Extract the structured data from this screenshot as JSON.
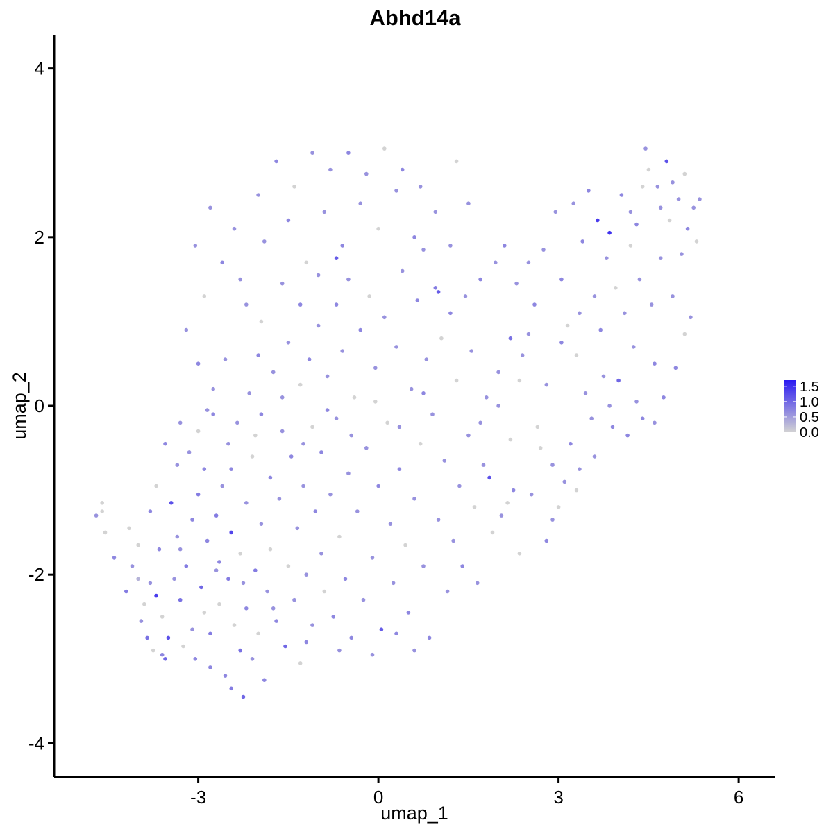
{
  "chart_data": {
    "type": "scatter",
    "title": "Abhd14a",
    "xlabel": "umap_1",
    "ylabel": "umap_2",
    "xlim": [
      -5.4,
      6.6
    ],
    "ylim": [
      -4.4,
      4.4
    ],
    "x_ticks": [
      -3,
      0,
      3,
      6
    ],
    "x_tick_labels": [
      "-3",
      "0",
      "3",
      "6"
    ],
    "y_ticks": [
      -4,
      -2,
      0,
      2,
      4
    ],
    "y_tick_labels": [
      "-4",
      "-2",
      "0",
      "2",
      "4"
    ],
    "grid": false,
    "legend_placement": "right",
    "color_scale": {
      "low_color": "#d3d3d3",
      "high_color": "#2b1bf2",
      "min": 0.0,
      "max": 1.7,
      "tick_values": [
        0.0,
        0.5,
        1.0,
        1.5
      ],
      "tick_labels": [
        "0.0",
        "0.5",
        "1.0",
        "1.5"
      ]
    },
    "points_note_key": "x,y,expression",
    "points": [
      [
        -4.7,
        -1.3,
        0.6
      ],
      [
        -4.6,
        -1.15,
        0.0
      ],
      [
        -4.6,
        -1.25,
        0.0
      ],
      [
        -4.55,
        -1.5,
        0.0
      ],
      [
        -4.4,
        -1.8,
        0.7
      ],
      [
        -4.2,
        -2.2,
        0.8
      ],
      [
        -4.15,
        -1.45,
        0.0
      ],
      [
        -4.1,
        -1.9,
        0.6
      ],
      [
        -4.0,
        -2.05,
        0.3
      ],
      [
        -4.0,
        -1.65,
        0.0
      ],
      [
        -3.95,
        -2.55,
        0.6
      ],
      [
        -3.9,
        -2.35,
        0.0
      ],
      [
        -3.85,
        -2.75,
        0.9
      ],
      [
        -3.8,
        -1.25,
        0.7
      ],
      [
        -3.75,
        -2.9,
        0.0
      ],
      [
        -3.7,
        -2.25,
        1.4
      ],
      [
        -3.65,
        -1.7,
        0.7
      ],
      [
        -3.6,
        -2.5,
        0.0
      ],
      [
        -3.6,
        -2.95,
        0.7
      ],
      [
        -3.55,
        -3.0,
        1.0
      ],
      [
        -3.5,
        -2.75,
        1.2
      ],
      [
        -3.45,
        -1.15,
        1.2
      ],
      [
        -3.4,
        -2.05,
        0.6
      ],
      [
        -3.35,
        -1.55,
        0.6
      ],
      [
        -3.3,
        -2.3,
        0.9
      ],
      [
        -3.3,
        -0.2,
        0.6
      ],
      [
        -3.25,
        -2.85,
        0.0
      ],
      [
        -3.2,
        -1.9,
        0.8
      ],
      [
        -3.15,
        -0.55,
        0.6
      ],
      [
        -3.1,
        -1.35,
        0.7
      ],
      [
        -3.1,
        -2.65,
        0.6
      ],
      [
        -3.05,
        -3.0,
        0.7
      ],
      [
        -3.0,
        -1.05,
        0.8
      ],
      [
        -3.0,
        -0.3,
        0.0
      ],
      [
        -2.95,
        -2.15,
        1.0
      ],
      [
        -2.9,
        -0.75,
        0.7
      ],
      [
        -2.9,
        -2.45,
        0.0
      ],
      [
        -2.85,
        -1.6,
        0.7
      ],
      [
        -2.8,
        -3.1,
        0.7
      ],
      [
        -2.8,
        -2.7,
        0.8
      ],
      [
        -2.75,
        -0.1,
        0.7
      ],
      [
        -2.7,
        -1.95,
        0.6
      ],
      [
        -2.7,
        -1.3,
        0.8
      ],
      [
        -2.65,
        -2.35,
        0.0
      ],
      [
        -2.6,
        -0.95,
        0.6
      ],
      [
        -2.55,
        -3.2,
        0.7
      ],
      [
        -2.5,
        -2.05,
        0.8
      ],
      [
        -2.5,
        -0.45,
        0.6
      ],
      [
        -2.45,
        -1.5,
        1.3
      ],
      [
        -2.45,
        -3.35,
        0.8
      ],
      [
        -2.4,
        -2.6,
        0.0
      ],
      [
        -2.35,
        -0.2,
        0.6
      ],
      [
        -2.3,
        -1.75,
        0.0
      ],
      [
        -2.3,
        -2.9,
        0.9
      ],
      [
        -2.25,
        -3.45,
        1.0
      ],
      [
        -2.2,
        -1.15,
        0.6
      ],
      [
        -2.2,
        -2.4,
        0.7
      ],
      [
        -2.15,
        0.15,
        0.6
      ],
      [
        -2.1,
        -0.6,
        0.0
      ],
      [
        -2.1,
        -3.0,
        0.6
      ],
      [
        -2.05,
        -1.95,
        0.8
      ],
      [
        -2.0,
        -2.7,
        0.0
      ],
      [
        -1.95,
        -1.4,
        0.6
      ],
      [
        -1.95,
        -0.1,
        0.7
      ],
      [
        -1.9,
        -3.25,
        0.7
      ],
      [
        -1.85,
        -2.2,
        0.6
      ],
      [
        -1.8,
        -0.85,
        0.7
      ],
      [
        -1.8,
        -1.7,
        0.0
      ],
      [
        -1.75,
        0.4,
        0.6
      ],
      [
        -1.7,
        -2.55,
        0.7
      ],
      [
        -1.65,
        -1.1,
        0.6
      ],
      [
        -1.6,
        -0.3,
        0.6
      ],
      [
        -1.55,
        -2.85,
        1.0
      ],
      [
        -1.5,
        -1.9,
        0.0
      ],
      [
        -1.5,
        0.75,
        0.6
      ],
      [
        -1.45,
        -0.6,
        0.7
      ],
      [
        -1.4,
        -2.3,
        0.6
      ],
      [
        -1.35,
        -1.45,
        0.6
      ],
      [
        -1.3,
        0.25,
        0.0
      ],
      [
        -1.3,
        -3.05,
        0.0
      ],
      [
        -1.25,
        -0.95,
        0.6
      ],
      [
        -1.2,
        -2.0,
        0.6
      ],
      [
        -1.15,
        0.55,
        0.7
      ],
      [
        -1.1,
        -0.25,
        0.0
      ],
      [
        -1.1,
        -2.6,
        0.6
      ],
      [
        -1.05,
        -1.25,
        0.7
      ],
      [
        -1.0,
        0.95,
        0.6
      ],
      [
        -0.95,
        -1.75,
        0.6
      ],
      [
        -0.95,
        -0.55,
        0.7
      ],
      [
        -0.9,
        -2.2,
        0.0
      ],
      [
        -0.85,
        0.35,
        0.6
      ],
      [
        -0.8,
        -1.05,
        0.6
      ],
      [
        -0.75,
        -2.5,
        0.7
      ],
      [
        -0.7,
        1.2,
        0.7
      ],
      [
        -0.7,
        -0.15,
        0.6
      ],
      [
        -0.65,
        -1.55,
        0.0
      ],
      [
        -0.6,
        0.65,
        0.6
      ],
      [
        -0.55,
        -2.05,
        0.7
      ],
      [
        -0.5,
        -0.8,
        0.6
      ],
      [
        -0.5,
        1.5,
        0.6
      ],
      [
        -0.45,
        -2.75,
        0.7
      ],
      [
        -0.4,
        0.1,
        0.0
      ],
      [
        -0.35,
        -1.25,
        0.6
      ],
      [
        -0.3,
        0.9,
        0.7
      ],
      [
        -0.25,
        -2.3,
        0.6
      ],
      [
        -0.2,
        -0.5,
        0.6
      ],
      [
        -0.15,
        1.3,
        0.0
      ],
      [
        -0.1,
        -1.8,
        0.6
      ],
      [
        -0.05,
        0.45,
        0.6
      ],
      [
        0.0,
        -0.95,
        0.7
      ],
      [
        0.05,
        -2.65,
        1.1
      ],
      [
        0.1,
        1.05,
        0.6
      ],
      [
        0.15,
        -0.2,
        0.0
      ],
      [
        0.2,
        -1.4,
        0.6
      ],
      [
        0.25,
        -2.1,
        0.6
      ],
      [
        0.3,
        0.7,
        0.6
      ],
      [
        0.35,
        -0.75,
        0.7
      ],
      [
        0.4,
        1.6,
        0.6
      ],
      [
        0.45,
        -1.65,
        0.0
      ],
      [
        0.5,
        -2.45,
        0.7
      ],
      [
        0.55,
        0.2,
        0.6
      ],
      [
        0.6,
        -1.1,
        0.6
      ],
      [
        0.65,
        1.25,
        0.7
      ],
      [
        0.7,
        -0.45,
        0.0
      ],
      [
        0.75,
        -1.9,
        0.6
      ],
      [
        0.8,
        0.55,
        0.6
      ],
      [
        0.85,
        -2.75,
        0.7
      ],
      [
        0.9,
        -0.1,
        0.6
      ],
      [
        0.95,
        1.4,
        0.8
      ],
      [
        1.0,
        -1.35,
        0.6
      ],
      [
        1.05,
        0.8,
        0.0
      ],
      [
        1.1,
        -0.65,
        0.6
      ],
      [
        1.15,
        -2.2,
        0.6
      ],
      [
        1.2,
        1.1,
        0.7
      ],
      [
        1.25,
        -1.6,
        0.6
      ],
      [
        1.3,
        0.3,
        0.0
      ],
      [
        1.35,
        -0.95,
        0.6
      ],
      [
        1.4,
        -1.9,
        0.7
      ],
      [
        1.45,
        1.3,
        0.6
      ],
      [
        1.5,
        -0.35,
        0.6
      ],
      [
        1.55,
        0.65,
        0.6
      ],
      [
        1.6,
        -1.2,
        0.0
      ],
      [
        1.65,
        -2.1,
        0.6
      ],
      [
        1.7,
        1.5,
        0.7
      ],
      [
        1.75,
        -0.7,
        0.6
      ],
      [
        1.8,
        0.1,
        0.6
      ],
      [
        1.85,
        -0.85,
        1.2
      ],
      [
        1.9,
        -1.5,
        0.0
      ],
      [
        1.95,
        1.7,
        0.6
      ],
      [
        2.0,
        0.4,
        0.6
      ],
      [
        2.05,
        -1.3,
        0.6
      ],
      [
        2.1,
        1.9,
        0.7
      ],
      [
        2.15,
        -1.15,
        0.0
      ],
      [
        2.2,
        0.8,
        0.9
      ],
      [
        2.25,
        -1.0,
        0.7
      ],
      [
        2.3,
        1.45,
        0.6
      ],
      [
        2.35,
        -1.75,
        0.0
      ],
      [
        2.4,
        0.6,
        0.6
      ],
      [
        2.5,
        1.7,
        0.6
      ],
      [
        2.55,
        -1.05,
        0.6
      ],
      [
        2.6,
        1.2,
        0.7
      ],
      [
        2.7,
        -0.5,
        0.0
      ],
      [
        2.75,
        1.85,
        0.6
      ],
      [
        2.8,
        -1.6,
        0.7
      ],
      [
        2.9,
        -1.35,
        0.6
      ],
      [
        2.95,
        2.3,
        0.6
      ],
      [
        3.0,
        -1.2,
        0.0
      ],
      [
        3.05,
        1.5,
        0.7
      ],
      [
        3.1,
        -0.9,
        0.6
      ],
      [
        3.15,
        0.95,
        0.0
      ],
      [
        3.2,
        -0.45,
        0.7
      ],
      [
        3.25,
        2.4,
        0.6
      ],
      [
        3.3,
        0.6,
        0.0
      ],
      [
        3.35,
        -0.75,
        0.6
      ],
      [
        3.4,
        1.95,
        0.7
      ],
      [
        3.45,
        0.15,
        0.6
      ],
      [
        3.5,
        2.55,
        0.7
      ],
      [
        3.55,
        -0.15,
        0.6
      ],
      [
        3.6,
        1.3,
        0.6
      ],
      [
        3.65,
        2.2,
        1.4
      ],
      [
        3.7,
        0.9,
        0.7
      ],
      [
        3.75,
        0.35,
        0.6
      ],
      [
        3.8,
        1.75,
        0.6
      ],
      [
        3.85,
        2.05,
        1.5
      ],
      [
        3.9,
        -0.25,
        0.7
      ],
      [
        3.95,
        1.4,
        0.0
      ],
      [
        4.0,
        0.3,
        1.0
      ],
      [
        4.05,
        2.5,
        0.7
      ],
      [
        4.1,
        1.1,
        0.6
      ],
      [
        4.15,
        -0.35,
        0.7
      ],
      [
        4.2,
        1.9,
        0.0
      ],
      [
        4.25,
        0.7,
        0.6
      ],
      [
        4.3,
        2.15,
        0.7
      ],
      [
        4.35,
        1.5,
        0.6
      ],
      [
        4.4,
        -0.15,
        0.7
      ],
      [
        4.45,
        3.05,
        0.6
      ],
      [
        4.5,
        2.8,
        0.0
      ],
      [
        4.55,
        1.2,
        0.6
      ],
      [
        4.6,
        0.5,
        0.7
      ],
      [
        4.65,
        2.6,
        0.6
      ],
      [
        4.7,
        1.75,
        0.6
      ],
      [
        4.75,
        0.1,
        0.7
      ],
      [
        4.8,
        2.9,
        1.2
      ],
      [
        4.85,
        2.2,
        0.0
      ],
      [
        4.9,
        1.3,
        0.6
      ],
      [
        4.95,
        0.45,
        0.7
      ],
      [
        5.0,
        2.45,
        0.6
      ],
      [
        5.05,
        1.8,
        0.6
      ],
      [
        5.1,
        0.85,
        0.0
      ],
      [
        5.15,
        2.1,
        0.7
      ],
      [
        5.2,
        1.05,
        0.6
      ],
      [
        5.25,
        2.35,
        0.6
      ],
      [
        5.3,
        1.95,
        0.0
      ],
      [
        5.35,
        2.45,
        0.6
      ],
      [
        -2.2,
        1.2,
        0.6
      ],
      [
        -2.6,
        1.7,
        0.7
      ],
      [
        -2.9,
        1.3,
        0.0
      ],
      [
        -2.4,
        2.1,
        0.6
      ],
      [
        -2.0,
        2.5,
        0.6
      ],
      [
        -1.7,
        2.9,
        0.7
      ],
      [
        -1.4,
        2.6,
        0.0
      ],
      [
        -1.1,
        3.0,
        0.6
      ],
      [
        -0.8,
        2.8,
        0.6
      ],
      [
        -0.5,
        3.0,
        0.7
      ],
      [
        -0.2,
        2.75,
        0.6
      ],
      [
        0.1,
        3.05,
        0.0
      ],
      [
        0.4,
        2.8,
        0.7
      ],
      [
        0.7,
        2.6,
        0.6
      ],
      [
        0.95,
        2.3,
        0.6
      ],
      [
        -1.9,
        1.95,
        0.6
      ],
      [
        -1.5,
        2.2,
        0.7
      ],
      [
        -1.2,
        1.7,
        0.0
      ],
      [
        -0.9,
        2.3,
        0.6
      ],
      [
        -0.6,
        1.9,
        0.7
      ],
      [
        -0.3,
        2.4,
        0.6
      ],
      [
        0.0,
        2.1,
        0.0
      ],
      [
        0.3,
        2.55,
        0.6
      ],
      [
        0.6,
        2.0,
        0.7
      ],
      [
        -2.3,
        1.5,
        0.6
      ],
      [
        -1.95,
        1.0,
        0.0
      ],
      [
        -1.6,
        1.45,
        0.6
      ],
      [
        -1.3,
        1.2,
        0.7
      ],
      [
        -1.0,
        1.55,
        0.6
      ],
      [
        -0.7,
        1.75,
        1.1
      ],
      [
        -3.2,
        0.9,
        0.6
      ],
      [
        -3.0,
        0.5,
        0.7
      ],
      [
        -2.75,
        0.2,
        0.6
      ],
      [
        -3.05,
        1.9,
        0.6
      ],
      [
        -2.8,
        2.35,
        0.6
      ],
      [
        -3.35,
        -0.7,
        0.6
      ],
      [
        -3.55,
        -0.45,
        0.7
      ],
      [
        -3.7,
        -0.95,
        0.0
      ],
      [
        -2.55,
        0.55,
        0.6
      ],
      [
        -2.0,
        0.6,
        0.7
      ],
      [
        1.2,
        1.9,
        0.6
      ],
      [
        1.5,
        2.4,
        0.6
      ],
      [
        1.3,
        2.9,
        0.0
      ],
      [
        1.0,
        1.35,
        1.1
      ],
      [
        0.75,
        1.85,
        0.6
      ],
      [
        2.5,
        0.85,
        0.6
      ],
      [
        2.35,
        0.3,
        0.0
      ],
      [
        2.0,
        0.0,
        0.6
      ],
      [
        1.7,
        -0.2,
        0.6
      ],
      [
        2.2,
        -0.4,
        0.0
      ],
      [
        3.3,
        -1.0,
        0.0
      ],
      [
        3.6,
        -0.6,
        0.6
      ],
      [
        3.85,
        0.0,
        0.6
      ],
      [
        4.3,
        0.05,
        0.6
      ],
      [
        4.6,
        -0.2,
        0.6
      ],
      [
        -3.8,
        -2.1,
        0.6
      ],
      [
        -3.3,
        -1.7,
        0.6
      ],
      [
        -2.65,
        -1.85,
        0.7
      ],
      [
        -2.25,
        -2.1,
        0.6
      ],
      [
        -1.75,
        -2.4,
        0.6
      ],
      [
        -1.2,
        -2.8,
        0.7
      ],
      [
        -0.65,
        -2.9,
        0.6
      ],
      [
        -0.1,
        -2.95,
        0.6
      ],
      [
        0.3,
        -2.7,
        0.7
      ],
      [
        0.6,
        -2.9,
        0.6
      ],
      [
        -2.85,
        -0.05,
        0.6
      ],
      [
        -2.45,
        -0.75,
        0.7
      ],
      [
        -2.05,
        -0.35,
        0.0
      ],
      [
        -1.6,
        0.1,
        0.6
      ],
      [
        -1.25,
        -0.45,
        0.6
      ],
      [
        -0.85,
        -0.05,
        0.7
      ],
      [
        -0.45,
        -0.35,
        0.6
      ],
      [
        -0.05,
        0.05,
        0.0
      ],
      [
        0.35,
        -0.25,
        0.6
      ],
      [
        0.75,
        0.15,
        0.7
      ],
      [
        4.9,
        2.65,
        0.6
      ],
      [
        4.7,
        2.35,
        0.6
      ],
      [
        4.4,
        2.6,
        0.0
      ],
      [
        4.2,
        2.3,
        0.6
      ],
      [
        5.1,
        2.75,
        0.0
      ],
      [
        3.35,
        1.1,
        0.6
      ],
      [
        3.05,
        0.75,
        0.7
      ],
      [
        2.8,
        0.25,
        0.6
      ],
      [
        2.65,
        -0.25,
        0.0
      ],
      [
        2.9,
        -0.7,
        0.6
      ]
    ]
  }
}
